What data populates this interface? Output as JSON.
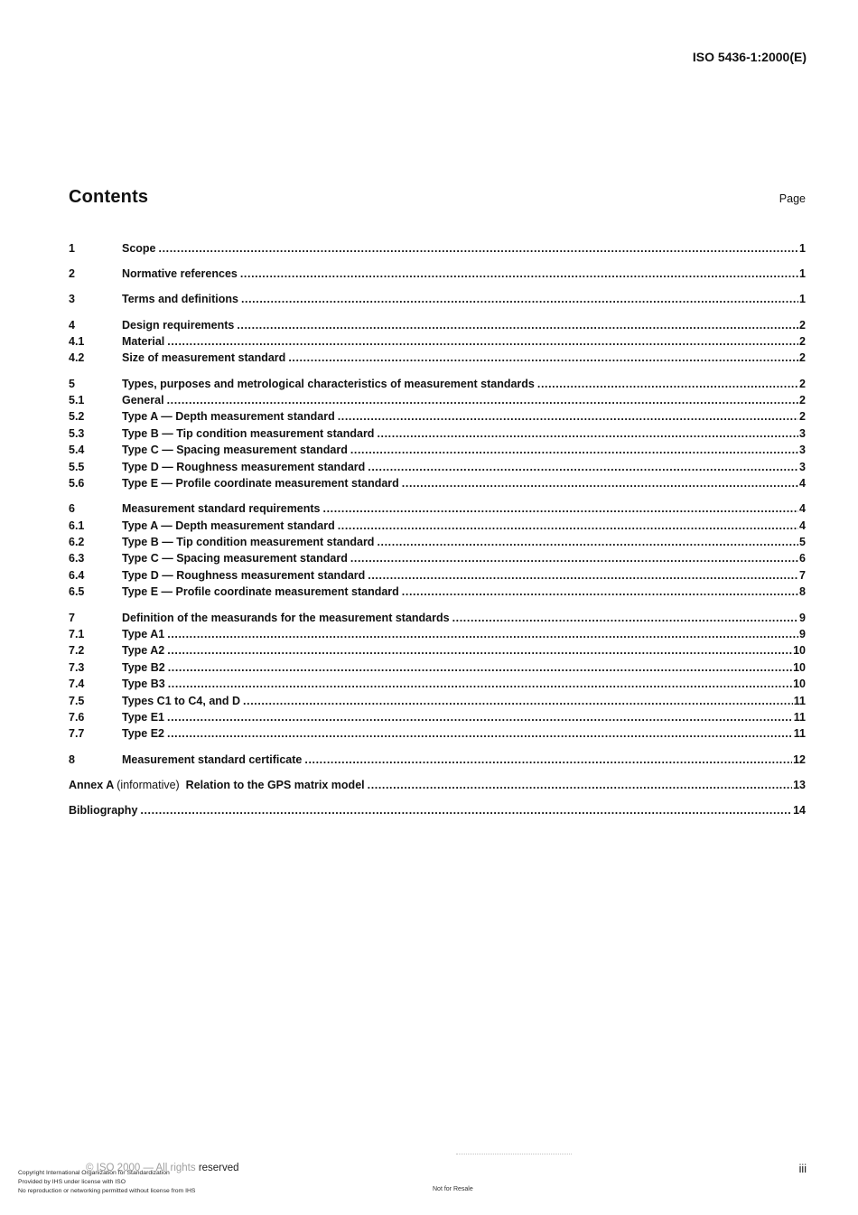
{
  "header": {
    "doc_ref": "ISO 5436-1:2000(E)"
  },
  "contents": {
    "title": "Contents",
    "page_label": "Page"
  },
  "toc": {
    "entries": [
      {
        "num": "1",
        "group": false,
        "parts": [
          {
            "text": "Scope",
            "bold": true
          }
        ],
        "page": "1"
      },
      {
        "num": "2",
        "group": true,
        "parts": [
          {
            "text": "Normative references",
            "bold": true
          }
        ],
        "page": "1"
      },
      {
        "num": "3",
        "group": true,
        "parts": [
          {
            "text": "Terms and definitions",
            "bold": true
          }
        ],
        "page": "1"
      },
      {
        "num": "4",
        "group": true,
        "parts": [
          {
            "text": "Design requirements",
            "bold": true
          }
        ],
        "page": "2"
      },
      {
        "num": "4.1",
        "group": false,
        "parts": [
          {
            "text": "Material",
            "bold": true
          }
        ],
        "page": "2"
      },
      {
        "num": "4.2",
        "group": false,
        "parts": [
          {
            "text": "Size of measurement standard",
            "bold": true
          }
        ],
        "page": "2"
      },
      {
        "num": "5",
        "group": true,
        "parts": [
          {
            "text": "Types, purposes and metrological characteristics of measurement standards",
            "bold": true
          }
        ],
        "page": "2"
      },
      {
        "num": "5.1",
        "group": false,
        "parts": [
          {
            "text": "General",
            "bold": true
          }
        ],
        "page": "2"
      },
      {
        "num": "5.2",
        "group": false,
        "parts": [
          {
            "text": "Type A — Depth measurement standard",
            "bold": true
          }
        ],
        "page": "2"
      },
      {
        "num": "5.3",
        "group": false,
        "parts": [
          {
            "text": "Type B — Tip condition measurement standard",
            "bold": true
          }
        ],
        "page": "3"
      },
      {
        "num": "5.4",
        "group": false,
        "parts": [
          {
            "text": "Type C — Spacing measurement standard",
            "bold": true
          }
        ],
        "page": "3"
      },
      {
        "num": "5.5",
        "group": false,
        "parts": [
          {
            "text": "Type D — Roughness measurement standard",
            "bold": true
          }
        ],
        "page": "3"
      },
      {
        "num": "5.6",
        "group": false,
        "parts": [
          {
            "text": "Type E — Profile coordinate measurement standard",
            "bold": true
          }
        ],
        "page": "4"
      },
      {
        "num": "6",
        "group": true,
        "parts": [
          {
            "text": "Measurement standard requirements",
            "bold": true
          }
        ],
        "page": "4"
      },
      {
        "num": "6.1",
        "group": false,
        "parts": [
          {
            "text": "Type A — Depth measurement standard",
            "bold": true
          }
        ],
        "page": "4"
      },
      {
        "num": "6.2",
        "group": false,
        "parts": [
          {
            "text": "Type B — Tip condition measurement standard",
            "bold": true
          }
        ],
        "page": "5"
      },
      {
        "num": "6.3",
        "group": false,
        "parts": [
          {
            "text": "Type C — Spacing measurement standard",
            "bold": true
          }
        ],
        "page": "6"
      },
      {
        "num": "6.4",
        "group": false,
        "parts": [
          {
            "text": "Type D — Roughness measurement standard",
            "bold": true
          }
        ],
        "page": "7"
      },
      {
        "num": "6.5",
        "group": false,
        "parts": [
          {
            "text": "Type E — Profile coordinate measurement standard",
            "bold": true
          }
        ],
        "page": "8"
      },
      {
        "num": "7",
        "group": true,
        "parts": [
          {
            "text": "Definition of the measurands for the measurement standards",
            "bold": true
          }
        ],
        "page": "9"
      },
      {
        "num": "7.1",
        "group": false,
        "parts": [
          {
            "text": "Type A1",
            "bold": true
          }
        ],
        "page": "9"
      },
      {
        "num": "7.2",
        "group": false,
        "parts": [
          {
            "text": "Type A2",
            "bold": true
          }
        ],
        "page": "10"
      },
      {
        "num": "7.3",
        "group": false,
        "parts": [
          {
            "text": "Type B2",
            "bold": true
          }
        ],
        "page": "10"
      },
      {
        "num": "7.4",
        "group": false,
        "parts": [
          {
            "text": "Type B3",
            "bold": true
          }
        ],
        "page": "10"
      },
      {
        "num": "7.5",
        "group": false,
        "parts": [
          {
            "text": "Types C1 to C4, and D",
            "bold": true
          }
        ],
        "page": "11"
      },
      {
        "num": "7.6",
        "group": false,
        "parts": [
          {
            "text": "Type E1",
            "bold": true
          }
        ],
        "page": "11"
      },
      {
        "num": "7.7",
        "group": false,
        "parts": [
          {
            "text": "Type E2",
            "bold": true
          }
        ],
        "page": "11"
      },
      {
        "num": "8",
        "group": true,
        "parts": [
          {
            "text": "Measurement standard certificate",
            "bold": true
          }
        ],
        "page": "12"
      },
      {
        "num": "",
        "group": true,
        "parts": [
          {
            "text": "Annex A ",
            "bold": true
          },
          {
            "text": "(informative)",
            "bold": false
          },
          {
            "text": "  Relation to the GPS matrix model",
            "bold": true
          }
        ],
        "page": "13"
      },
      {
        "num": "",
        "group": true,
        "parts": [
          {
            "text": "Bibliography",
            "bold": true
          }
        ],
        "page": "14"
      }
    ]
  },
  "footer": {
    "copyright_light": "© ISO 2000 — All rights ",
    "copyright_dark": "reserved",
    "stamp_line1": "Copyright International Organization for Standardization",
    "stamp_line2": "Provided by IHS under license with ISO",
    "stamp_line3": "No reproduction or networking permitted without license from IHS",
    "not_for_resale": "Not for Resale",
    "page_number": "iii"
  }
}
